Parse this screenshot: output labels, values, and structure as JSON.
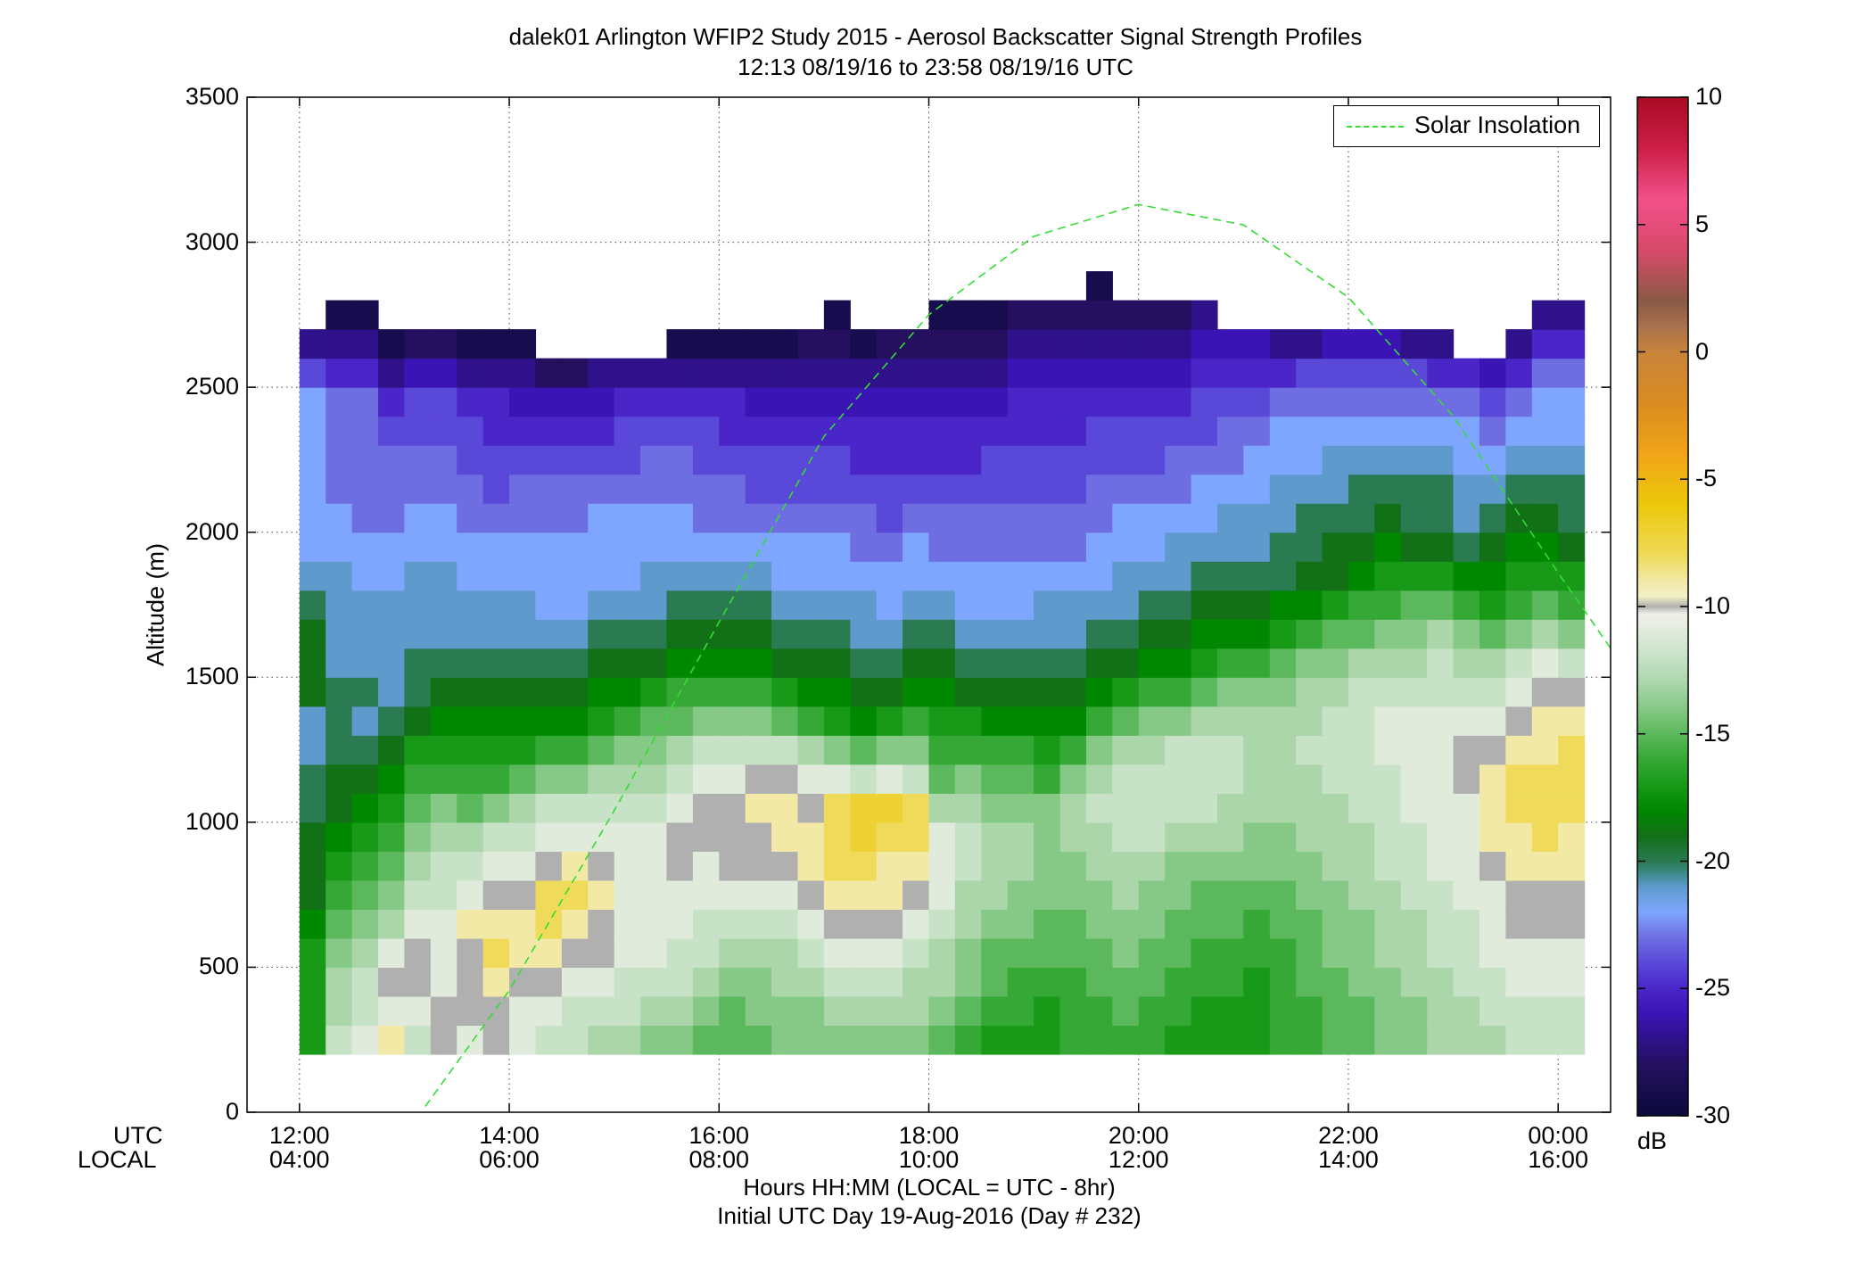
{
  "title_line1": "dalek01 Arlington WFIP2 Study 2015 - Aerosol Backscatter Signal Strength Profiles",
  "title_line2": "12:13 08/19/16 to 23:58 08/19/16  UTC",
  "ylabel": "Altitude (m)",
  "xlabel_line1": "Hours HH:MM  (LOCAL = UTC - 8hr)",
  "xlabel_line2": "Initial UTC Day 19-Aug-2016 (Day # 232)",
  "row_label_utc": "UTC",
  "row_label_local": "LOCAL",
  "colorbar_unit": "dB",
  "legend_label": "Solar Insolation",
  "colors": {
    "solar_line": "#33dd33",
    "plot_border": "#000000"
  },
  "chart_data": {
    "type": "heatmap",
    "ylim": [
      0,
      3500
    ],
    "xlim_hours": [
      11.5,
      24.5
    ],
    "yticks": [
      "0",
      "500",
      "1000",
      "1500",
      "2000",
      "2500",
      "3000",
      "3500"
    ],
    "xticks_utc": [
      "12:00",
      "14:00",
      "16:00",
      "18:00",
      "20:00",
      "22:00",
      "00:00"
    ],
    "xticks_local": [
      "04:00",
      "06:00",
      "08:00",
      "10:00",
      "12:00",
      "14:00",
      "16:00"
    ],
    "colorbar_range": [
      -30,
      10
    ],
    "colorbar_ticks": [
      "10",
      "5",
      "0",
      "-5",
      "-10",
      "-15",
      "-20",
      "-25",
      "-30"
    ],
    "grid": true,
    "legend_position": "top-right",
    "time_start_utc_hours": 12.0,
    "time_step_hours": 0.25,
    "alt_start_m": 200,
    "alt_step_m": 100,
    "series": [
      {
        "name": "Solar Insolation",
        "x_hours_utc": [
          13.2,
          14.0,
          15.0,
          16.0,
          17.0,
          18.0,
          19.0,
          20.0,
          21.0,
          22.0,
          23.0,
          24.0,
          24.5
        ],
        "y_m": [
          20,
          420,
          1040,
          1690,
          2330,
          2750,
          3020,
          3130,
          3060,
          2810,
          2400,
          1860,
          1600
        ]
      }
    ],
    "profiles_db": [
      [
        -17,
        -17,
        -17,
        -17,
        -18,
        -19,
        -19,
        -19,
        -20,
        -20,
        -21,
        -21,
        -19,
        -19,
        -19,
        -20,
        -21,
        -22,
        -22,
        -22,
        -22,
        -22,
        -22,
        -24,
        -27
      ],
      [
        -12,
        -13,
        -13,
        -14,
        -15,
        -16,
        -17,
        -18,
        -19,
        -19,
        -20,
        -20,
        -20,
        -21,
        -21,
        -21,
        -21,
        -22,
        -22,
        -23,
        -23,
        -23,
        -23,
        -25,
        -27,
        -29
      ],
      [
        -11,
        -12,
        -12,
        -13,
        -14,
        -15,
        -16,
        -17,
        -18,
        -19,
        -20,
        -21,
        -20,
        -21,
        -21,
        -21,
        -22,
        -22,
        -23,
        -23,
        -23,
        -23,
        -23,
        -25,
        -27,
        -29
      ],
      [
        -9,
        -11,
        -10,
        -11,
        -13,
        -14,
        -15,
        -16,
        -17,
        -18,
        -19,
        -20,
        -21,
        -21,
        -21,
        -21,
        -22,
        -22,
        -23,
        -23,
        -23,
        -24,
        -25,
        -27,
        -29
      ],
      [
        -12,
        -11,
        -10,
        -10,
        -11,
        -12,
        -13,
        -14,
        -15,
        -16,
        -17,
        -19,
        -20,
        -20,
        -21,
        -21,
        -21,
        -22,
        -22,
        -23,
        -23,
        -24,
        -24,
        -26,
        -28
      ],
      [
        -10,
        -10,
        -11,
        -11,
        -11,
        -12,
        -12,
        -13,
        -14,
        -16,
        -17,
        -18,
        -19,
        -20,
        -21,
        -21,
        -21,
        -22,
        -22,
        -23,
        -23,
        -24,
        -24,
        -26,
        -28
      ],
      [
        -11,
        -10,
        -10,
        -10,
        -9,
        -11,
        -12,
        -13,
        -15,
        -16,
        -17,
        -18,
        -19,
        -20,
        -21,
        -21,
        -22,
        -22,
        -23,
        -23,
        -24,
        -24,
        -25,
        -27,
        -29
      ],
      [
        -10,
        -10,
        -9,
        -8,
        -9,
        -10,
        -11,
        -12,
        -14,
        -16,
        -17,
        -18,
        -19,
        -20,
        -21,
        -21,
        -22,
        -22,
        -23,
        -24,
        -24,
        -25,
        -25,
        -27,
        -29
      ],
      [
        -11,
        -11,
        -10,
        -9,
        -9,
        -10,
        -11,
        -12,
        -13,
        -15,
        -17,
        -18,
        -19,
        -20,
        -21,
        -21,
        -22,
        -22,
        -23,
        -23,
        -24,
        -25,
        -26,
        -27,
        -29
      ],
      [
        -12,
        -11,
        -10,
        -9,
        -8,
        -8,
        -10,
        -11,
        -12,
        -14,
        -16,
        -18,
        -19,
        -20,
        -21,
        -22,
        -22,
        -22,
        -23,
        -23,
        -24,
        -25,
        -26,
        -28
      ],
      [
        -12,
        -12,
        -11,
        -10,
        -9,
        -8,
        -9,
        -11,
        -12,
        -14,
        -16,
        -18,
        -19,
        -20,
        -21,
        -22,
        -22,
        -22,
        -23,
        -23,
        -24,
        -25,
        -26,
        -28
      ],
      [
        -13,
        -12,
        -11,
        -10,
        -10,
        -9,
        -10,
        -11,
        -12,
        -13,
        -15,
        -17,
        -18,
        -19,
        -20,
        -21,
        -22,
        -22,
        -22,
        -23,
        -24,
        -25,
        -26,
        -27
      ],
      [
        -13,
        -12,
        -12,
        -11,
        -11,
        -11,
        -11,
        -11,
        -12,
        -13,
        -14,
        -16,
        -18,
        -19,
        -20,
        -21,
        -22,
        -22,
        -22,
        -23,
        -24,
        -24,
        -25,
        -27
      ],
      [
        -14,
        -13,
        -12,
        -11,
        -11,
        -11,
        -11,
        -11,
        -12,
        -13,
        -14,
        -15,
        -17,
        -19,
        -20,
        -21,
        -21,
        -22,
        -22,
        -23,
        -23,
        -24,
        -25,
        -27
      ],
      [
        -14,
        -13,
        -12,
        -12,
        -11,
        -11,
        -10,
        -10,
        -11,
        -12,
        -13,
        -15,
        -16,
        -18,
        -19,
        -20,
        -21,
        -22,
        -22,
        -23,
        -23,
        -24,
        -25,
        -27,
        -29
      ],
      [
        -15,
        -14,
        -13,
        -12,
        -12,
        -11,
        -11,
        -10,
        -10,
        -11,
        -12,
        -14,
        -16,
        -18,
        -19,
        -20,
        -21,
        -22,
        -23,
        -23,
        -24,
        -24,
        -25,
        -27,
        -29
      ],
      [
        -15,
        -15,
        -14,
        -13,
        -12,
        -11,
        -10,
        -10,
        -10,
        -11,
        -12,
        -14,
        -16,
        -18,
        -19,
        -20,
        -21,
        -22,
        -23,
        -23,
        -24,
        -25,
        -25,
        -27,
        -29
      ],
      [
        -15,
        -14,
        -14,
        -13,
        -12,
        -11,
        -10,
        -10,
        -9,
        -10,
        -12,
        -14,
        -16,
        -18,
        -19,
        -20,
        -21,
        -22,
        -23,
        -24,
        -24,
        -25,
        -26,
        -27,
        -29
      ],
      [
        -14,
        -14,
        -13,
        -13,
        -12,
        -11,
        -10,
        -9,
        -9,
        -10,
        -12,
        -15,
        -17,
        -19,
        -20,
        -21,
        -22,
        -22,
        -23,
        -24,
        -24,
        -25,
        -26,
        -27,
        -29
      ],
      [
        -14,
        -14,
        -13,
        -12,
        -11,
        -10,
        -9,
        -9,
        -10,
        -11,
        -13,
        -16,
        -18,
        -19,
        -20,
        -21,
        -22,
        -22,
        -23,
        -24,
        -24,
        -25,
        -26,
        -27,
        -28
      ],
      [
        -14,
        -13,
        -12,
        -11,
        -10,
        -9,
        -8,
        -8,
        -8,
        -11,
        -14,
        -17,
        -18,
        -19,
        -20,
        -21,
        -22,
        -22,
        -23,
        -24,
        -24,
        -25,
        -26,
        -27,
        -28,
        -29
      ],
      [
        -14,
        -13,
        -12,
        -11,
        -10,
        -9,
        -8,
        -7,
        -7,
        -12,
        -15,
        -18,
        -19,
        -20,
        -21,
        -21,
        -22,
        -23,
        -23,
        -24,
        -25,
        -25,
        -26,
        -27,
        -29
      ],
      [
        -14,
        -13,
        -12,
        -11,
        -10,
        -9,
        -9,
        -8,
        -7,
        -11,
        -14,
        -17,
        -19,
        -20,
        -21,
        -22,
        -22,
        -23,
        -24,
        -24,
        -25,
        -25,
        -26,
        -27,
        -28
      ],
      [
        -14,
        -13,
        -13,
        -12,
        -11,
        -10,
        -9,
        -8,
        -8,
        -12,
        -14,
        -16,
        -18,
        -19,
        -20,
        -21,
        -22,
        -22,
        -23,
        -24,
        -25,
        -25,
        -26,
        -27,
        -28
      ],
      [
        -15,
        -14,
        -13,
        -13,
        -12,
        -11,
        -11,
        -11,
        -13,
        -15,
        -16,
        -17,
        -18,
        -19,
        -20,
        -21,
        -22,
        -23,
        -23,
        -24,
        -25,
        -25,
        -26,
        -27,
        -28,
        -29
      ],
      [
        -16,
        -15,
        -14,
        -14,
        -13,
        -13,
        -12,
        -12,
        -13,
        -14,
        -16,
        -17,
        -19,
        -20,
        -21,
        -22,
        -22,
        -23,
        -23,
        -24,
        -25,
        -25,
        -26,
        -27,
        -28,
        -29
      ],
      [
        -17,
        -16,
        -15,
        -15,
        -14,
        -13,
        -13,
        -13,
        -14,
        -15,
        -16,
        -18,
        -19,
        -20,
        -21,
        -22,
        -22,
        -23,
        -23,
        -24,
        -24,
        -25,
        -26,
        -27,
        -28,
        -29
      ],
      [
        -17,
        -16,
        -16,
        -15,
        -14,
        -14,
        -13,
        -13,
        -14,
        -15,
        -16,
        -18,
        -19,
        -20,
        -21,
        -22,
        -22,
        -23,
        -23,
        -24,
        -24,
        -25,
        -25,
        -26,
        -27,
        -28
      ],
      [
        -17,
        -17,
        -16,
        -15,
        -15,
        -14,
        -14,
        -14,
        -14,
        -16,
        -17,
        -18,
        -19,
        -20,
        -21,
        -21,
        -22,
        -23,
        -23,
        -24,
        -24,
        -25,
        -25,
        -26,
        -27,
        -28
      ],
      [
        -16,
        -16,
        -16,
        -15,
        -15,
        -14,
        -14,
        -13,
        -13,
        -14,
        -16,
        -18,
        -19,
        -20,
        -21,
        -21,
        -22,
        -23,
        -23,
        -24,
        -24,
        -25,
        -25,
        -26,
        -27,
        -28
      ],
      [
        -16,
        -16,
        -15,
        -15,
        -14,
        -14,
        -13,
        -13,
        -12,
        -13,
        -14,
        -16,
        -18,
        -19,
        -20,
        -21,
        -22,
        -22,
        -23,
        -23,
        -24,
        -24,
        -25,
        -26,
        -27,
        -28,
        -29
      ],
      [
        -16,
        -15,
        -15,
        -14,
        -14,
        -13,
        -13,
        -12,
        -12,
        -12,
        -13,
        -15,
        -17,
        -19,
        -20,
        -21,
        -21,
        -22,
        -22,
        -23,
        -24,
        -24,
        -25,
        -26,
        -27,
        -28
      ],
      [
        -16,
        -16,
        -15,
        -15,
        -14,
        -14,
        -13,
        -12,
        -12,
        -12,
        -13,
        -14,
        -16,
        -18,
        -19,
        -20,
        -21,
        -22,
        -22,
        -23,
        -24,
        -24,
        -25,
        -26,
        -27,
        -28
      ],
      [
        -17,
        -16,
        -16,
        -15,
        -15,
        -14,
        -14,
        -13,
        -12,
        -12,
        -12,
        -14,
        -16,
        -18,
        -19,
        -20,
        -21,
        -21,
        -22,
        -23,
        -23,
        -24,
        -25,
        -26,
        -27,
        -28
      ],
      [
        -17,
        -17,
        -16,
        -16,
        -15,
        -15,
        -14,
        -13,
        -12,
        -12,
        -12,
        -13,
        -15,
        -17,
        -18,
        -19,
        -20,
        -21,
        -22,
        -22,
        -23,
        -24,
        -24,
        -25,
        -26,
        -27
      ],
      [
        -17,
        -17,
        -16,
        -16,
        -15,
        -15,
        -14,
        -13,
        -13,
        -12,
        -12,
        -13,
        -14,
        -16,
        -18,
        -19,
        -20,
        -21,
        -21,
        -22,
        -23,
        -23,
        -24,
        -25,
        -26
      ],
      [
        -17,
        -17,
        -17,
        -16,
        -16,
        -15,
        -14,
        -14,
        -13,
        -13,
        -13,
        -13,
        -14,
        -16,
        -18,
        -19,
        -20,
        -21,
        -21,
        -22,
        -22,
        -23,
        -24,
        -25,
        -26
      ],
      [
        -16,
        -16,
        -16,
        -16,
        -15,
        -15,
        -14,
        -14,
        -13,
        -13,
        -13,
        -13,
        -14,
        -15,
        -17,
        -18,
        -20,
        -20,
        -21,
        -21,
        -22,
        -22,
        -23,
        -25,
        -27
      ],
      [
        -16,
        -16,
        -15,
        -15,
        -15,
        -14,
        -14,
        -13,
        -13,
        -13,
        -12,
        -13,
        -13,
        -14,
        -16,
        -18,
        -19,
        -20,
        -20,
        -21,
        -22,
        -22,
        -23,
        -24,
        -27
      ],
      [
        -15,
        -15,
        -15,
        -14,
        -14,
        -14,
        -13,
        -13,
        -13,
        -12,
        -12,
        -12,
        -13,
        -14,
        -15,
        -17,
        -19,
        -19,
        -20,
        -21,
        -21,
        -22,
        -23,
        -24,
        -26
      ],
      [
        -15,
        -15,
        -14,
        -14,
        -14,
        -13,
        -13,
        -13,
        -12,
        -12,
        -12,
        -12,
        -12,
        -13,
        -15,
        -16,
        -18,
        -19,
        -20,
        -20,
        -21,
        -22,
        -23,
        -24,
        -26
      ],
      [
        -14,
        -14,
        -14,
        -13,
        -13,
        -13,
        -12,
        -12,
        -12,
        -12,
        -11,
        -11,
        -12,
        -13,
        -14,
        -16,
        -17,
        -18,
        -19,
        -20,
        -21,
        -22,
        -23,
        -24,
        -26
      ],
      [
        -14,
        -14,
        -13,
        -13,
        -13,
        -12,
        -12,
        -12,
        -11,
        -11,
        -11,
        -11,
        -12,
        -13,
        -14,
        -15,
        -17,
        -19,
        -20,
        -20,
        -21,
        -22,
        -23,
        -24,
        -27
      ],
      [
        -13,
        -13,
        -13,
        -12,
        -12,
        -12,
        -11,
        -11,
        -11,
        -11,
        -11,
        -11,
        -12,
        -12,
        -13,
        -15,
        -17,
        -19,
        -20,
        -20,
        -21,
        -22,
        -23,
        -25,
        -27
      ],
      [
        -13,
        -13,
        -12,
        -12,
        -12,
        -11,
        -11,
        -11,
        -11,
        -10,
        -10,
        -11,
        -12,
        -13,
        -14,
        -16,
        -18,
        -20,
        -21,
        -21,
        -22,
        -22,
        -23,
        -25
      ],
      [
        -13,
        -12,
        -12,
        -11,
        -11,
        -11,
        -10,
        -9,
        -9,
        -9,
        -10,
        -11,
        -12,
        -13,
        -15,
        -17,
        -18,
        -19,
        -20,
        -21,
        -22,
        -23,
        -24,
        -26
      ],
      [
        -12,
        -12,
        -11,
        -11,
        -10,
        -10,
        -9,
        -9,
        -8,
        -8,
        -9,
        -10,
        -11,
        -12,
        -14,
        -16,
        -17,
        -18,
        -19,
        -20,
        -21,
        -22,
        -23,
        -25,
        -27
      ],
      [
        -12,
        -12,
        -11,
        -11,
        -10,
        -10,
        -9,
        -8,
        -8,
        -8,
        -9,
        -9,
        -10,
        -11,
        -13,
        -15,
        -17,
        -18,
        -19,
        -20,
        -21,
        -22,
        -22,
        -23,
        -25,
        -27
      ],
      [
        -12,
        -12,
        -11,
        -11,
        -10,
        -10,
        -9,
        -9,
        -8,
        -8,
        -8,
        -9,
        -10,
        -12,
        -14,
        -16,
        -17,
        -19,
        -20,
        -20,
        -21,
        -22,
        -22,
        -23,
        -25,
        -27
      ]
    ]
  }
}
